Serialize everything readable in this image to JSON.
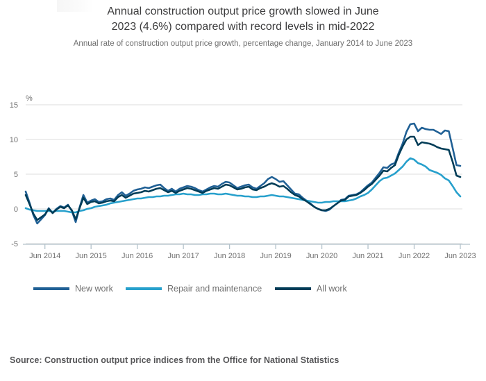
{
  "header": {
    "title_line1": "Annual construction output price growth slowed in June",
    "title_line2": "2023 (4.6%) compared with record levels in mid-2022",
    "subtitle": "Annual rate of construction output price growth, percentage change, January 2014 to June 2023"
  },
  "footer": {
    "source": "Source: Construction output price indices from the Office for National Statistics"
  },
  "chart_data": {
    "type": "line",
    "title": "Annual construction output price growth slowed in June 2023 (4.6%) compared with record levels in mid-2022",
    "subtitle": "Annual rate of construction output price growth, percentage change, January 2014 to June 2023",
    "unit": "%",
    "x_start": "2014-01",
    "x_end": "2023-06",
    "x_frequency": "monthly",
    "x_tick_labels": [
      "Jun 2014",
      "Jun 2015",
      "Jun 2016",
      "Jun 2017",
      "Jun 2018",
      "Jun 2019",
      "Jun 2020",
      "Jun 2021",
      "Jun 2022",
      "Jun 2023"
    ],
    "x_tick_month_indices": [
      5,
      17,
      29,
      41,
      53,
      65,
      77,
      89,
      101,
      113
    ],
    "ylim": [
      -5,
      15
    ],
    "y_ticks": [
      15,
      10,
      5,
      0,
      -5
    ],
    "grid": true,
    "legend_position": "bottom",
    "series": [
      {
        "name": "New work",
        "color": "#206095",
        "values": [
          2.5,
          0.9,
          -0.9,
          -2.1,
          -1.5,
          -0.9,
          0.1,
          -0.6,
          0.0,
          0.4,
          0.2,
          0.6,
          -0.3,
          -1.9,
          0.2,
          2.0,
          0.9,
          1.2,
          1.4,
          1.0,
          1.1,
          1.4,
          1.5,
          1.3,
          2.0,
          2.4,
          1.9,
          2.2,
          2.6,
          2.8,
          2.9,
          3.1,
          3.0,
          3.2,
          3.4,
          3.5,
          3.0,
          2.6,
          2.9,
          2.5,
          2.9,
          3.1,
          3.3,
          3.2,
          3.0,
          2.7,
          2.5,
          2.8,
          3.1,
          3.3,
          3.2,
          3.6,
          3.9,
          3.8,
          3.4,
          3.0,
          3.2,
          3.4,
          3.5,
          3.1,
          2.9,
          3.3,
          3.7,
          4.3,
          4.6,
          4.3,
          3.9,
          4.0,
          3.4,
          2.8,
          2.2,
          2.1,
          1.6,
          1.2,
          0.8,
          0.3,
          0.0,
          -0.2,
          -0.3,
          -0.1,
          0.4,
          0.8,
          1.3,
          1.4,
          1.9,
          2.0,
          2.1,
          2.4,
          2.9,
          3.4,
          3.8,
          4.5,
          5.2,
          6.0,
          5.9,
          6.4,
          6.6,
          8.1,
          9.4,
          11.1,
          12.2,
          12.3,
          11.2,
          11.7,
          11.5,
          11.4,
          11.4,
          11.1,
          10.8,
          11.3,
          11.2,
          8.8,
          6.3,
          6.2
        ]
      },
      {
        "name": "Repair and maintenance",
        "color": "#27A0CC",
        "values": [
          0.1,
          -0.1,
          -0.2,
          -0.3,
          -0.3,
          -0.3,
          -0.3,
          -0.4,
          -0.3,
          -0.3,
          -0.3,
          -0.4,
          -0.5,
          -0.5,
          -0.3,
          -0.2,
          0.0,
          0.1,
          0.3,
          0.4,
          0.5,
          0.6,
          0.8,
          0.9,
          1.0,
          1.1,
          1.2,
          1.3,
          1.4,
          1.5,
          1.5,
          1.6,
          1.7,
          1.7,
          1.8,
          1.8,
          1.9,
          1.9,
          2.0,
          2.1,
          2.1,
          2.2,
          2.1,
          2.1,
          2.0,
          2.0,
          2.1,
          2.1,
          2.2,
          2.2,
          2.1,
          2.1,
          2.2,
          2.1,
          2.0,
          1.9,
          1.9,
          1.8,
          1.8,
          1.7,
          1.7,
          1.8,
          1.8,
          1.9,
          2.0,
          1.9,
          1.8,
          1.8,
          1.7,
          1.6,
          1.5,
          1.4,
          1.3,
          1.2,
          1.1,
          1.0,
          0.9,
          0.9,
          1.0,
          1.0,
          1.1,
          1.1,
          1.1,
          1.1,
          1.2,
          1.3,
          1.5,
          1.8,
          2.0,
          2.3,
          2.8,
          3.4,
          4.0,
          4.4,
          4.5,
          4.8,
          5.1,
          5.6,
          6.1,
          6.8,
          7.3,
          7.1,
          6.6,
          6.4,
          6.1,
          5.6,
          5.4,
          5.2,
          4.9,
          4.4,
          4.1,
          3.3,
          2.4,
          1.8
        ]
      },
      {
        "name": "All work",
        "color": "#003C57",
        "values": [
          2.0,
          0.7,
          -0.7,
          -1.6,
          -1.2,
          -0.8,
          0.0,
          -0.6,
          -0.1,
          0.3,
          0.1,
          0.5,
          -0.2,
          -1.5,
          0.1,
          1.6,
          0.7,
          1.0,
          1.1,
          0.8,
          0.9,
          1.1,
          1.2,
          1.1,
          1.7,
          2.0,
          1.6,
          1.9,
          2.2,
          2.3,
          2.4,
          2.6,
          2.5,
          2.7,
          2.9,
          3.0,
          2.7,
          2.4,
          2.6,
          2.3,
          2.6,
          2.8,
          3.0,
          2.9,
          2.7,
          2.5,
          2.3,
          2.6,
          2.8,
          3.0,
          2.9,
          3.2,
          3.5,
          3.4,
          3.1,
          2.8,
          2.9,
          3.1,
          3.2,
          2.8,
          2.7,
          3.0,
          3.2,
          3.5,
          3.7,
          3.5,
          3.2,
          3.3,
          2.9,
          2.4,
          2.0,
          1.8,
          1.4,
          1.1,
          0.7,
          0.3,
          0.0,
          -0.2,
          -0.2,
          0.0,
          0.4,
          0.8,
          1.2,
          1.3,
          1.8,
          1.9,
          2.0,
          2.3,
          2.7,
          3.2,
          3.6,
          4.2,
          4.8,
          5.5,
          5.4,
          5.9,
          6.3,
          7.8,
          9.0,
          10.0,
          10.4,
          10.4,
          9.2,
          9.6,
          9.5,
          9.4,
          9.2,
          8.9,
          8.7,
          8.6,
          8.5,
          6.8,
          4.8,
          4.6
        ]
      }
    ],
    "key_values": {
      "all_work_jun_2023": 4.6,
      "new_work_jun_2023": 6.2,
      "repair_and_maintenance_jun_2023": 1.8,
      "new_work_peak_mid_2022": 12.3,
      "all_work_peak_mid_2022": 10.4,
      "repair_and_maintenance_peak_mid_2022": 7.3
    }
  },
  "legend_note": {
    "labels": [
      "New work",
      "Repair and maintenance",
      "All work"
    ]
  }
}
